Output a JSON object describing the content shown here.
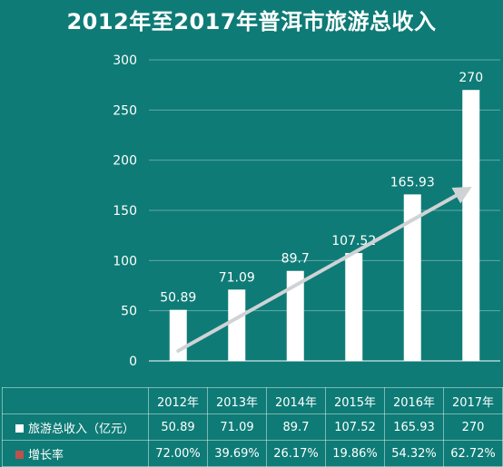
{
  "colors": {
    "background": "#0e7b76",
    "bar": "#ffffff",
    "trend_arrow": "#cfd3d6",
    "growth_swatch": "#c0504d",
    "gridline": "rgba(255,255,255,0.35)"
  },
  "chart_data": {
    "type": "bar",
    "title": "2012年至2017年普洱市旅游总收入",
    "categories": [
      "2012年",
      "2013年",
      "2014年",
      "2015年",
      "2016年",
      "2017年"
    ],
    "series": [
      {
        "name": "旅游总收入（亿元）",
        "values": [
          50.89,
          71.09,
          89.7,
          107.52,
          165.93,
          270
        ]
      }
    ],
    "data_labels": [
      "50.89",
      "71.09",
      "89.7",
      "107.52",
      "165.93",
      "270"
    ],
    "ylim": [
      0,
      300
    ],
    "yticks": [
      0,
      50,
      100,
      150,
      200,
      250,
      300
    ],
    "grid": true,
    "trend_arrow": {
      "from_category": "2012年",
      "to_category": "2017年",
      "from_value": 10,
      "to_value": 170
    },
    "table": {
      "rows": [
        {
          "label": "旅游总收入（亿元）",
          "swatch": "#ffffff",
          "values": [
            "50.89",
            "71.09",
            "89.7",
            "107.52",
            "165.93",
            "270"
          ]
        },
        {
          "label": "增长率",
          "swatch": "#c0504d",
          "values": [
            "72.00%",
            "39.69%",
            "26.17%",
            "19.86%",
            "54.32%",
            "62.72%"
          ]
        }
      ]
    }
  }
}
